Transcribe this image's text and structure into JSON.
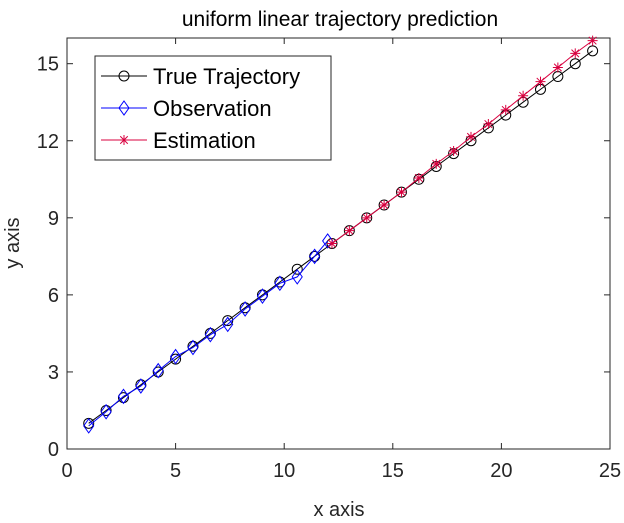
{
  "chart_data": {
    "type": "line",
    "title": "uniform linear trajectory prediction",
    "xlabel": "x axis",
    "ylabel": "y axis",
    "xlim": [
      0,
      25
    ],
    "ylim": [
      0,
      16
    ],
    "xticks": [
      0,
      5,
      10,
      15,
      20,
      25
    ],
    "yticks": [
      0,
      3,
      6,
      9,
      12,
      15
    ],
    "grid": false,
    "legend_position": "top-left",
    "series": [
      {
        "name": "True Trajectory",
        "color": "#000000",
        "marker": "circle",
        "x": [
          1.0,
          1.8,
          2.6,
          3.4,
          4.2,
          5.0,
          5.8,
          6.6,
          7.4,
          8.2,
          9.0,
          9.8,
          10.6,
          11.4,
          12.2,
          13.0,
          13.8,
          14.6,
          15.4,
          16.2,
          17.0,
          17.8,
          18.6,
          19.4,
          20.2,
          21.0,
          21.8,
          22.6,
          23.4,
          24.2
        ],
        "y": [
          1.0,
          1.5,
          2.0,
          2.5,
          3.0,
          3.5,
          4.0,
          4.5,
          5.0,
          5.5,
          6.0,
          6.5,
          7.0,
          7.5,
          8.0,
          8.5,
          9.0,
          9.5,
          10.0,
          10.5,
          11.0,
          11.5,
          12.0,
          12.5,
          13.0,
          13.5,
          14.0,
          14.5,
          15.0,
          15.5
        ]
      },
      {
        "name": "Observation",
        "color": "#0000ff",
        "marker": "diamond",
        "x": [
          1.0,
          1.8,
          2.6,
          3.4,
          4.2,
          5.0,
          5.8,
          6.6,
          7.4,
          8.2,
          9.0,
          9.8,
          10.6,
          11.4,
          12.0
        ],
        "y": [
          0.9,
          1.45,
          2.05,
          2.45,
          3.05,
          3.6,
          3.95,
          4.45,
          4.85,
          5.45,
          5.95,
          6.45,
          6.7,
          7.5,
          8.1
        ]
      },
      {
        "name": "Estimation",
        "color": "#d9003f",
        "marker": "star",
        "x": [
          12.2,
          13.0,
          13.8,
          14.6,
          15.4,
          16.2,
          17.0,
          17.8,
          18.6,
          19.4,
          20.2,
          21.0,
          21.8,
          22.6,
          23.4,
          24.2
        ],
        "y": [
          8.0,
          8.5,
          9.0,
          9.5,
          10.0,
          10.55,
          11.1,
          11.6,
          12.15,
          12.65,
          13.2,
          13.75,
          14.3,
          14.85,
          15.4,
          15.9
        ]
      }
    ]
  }
}
